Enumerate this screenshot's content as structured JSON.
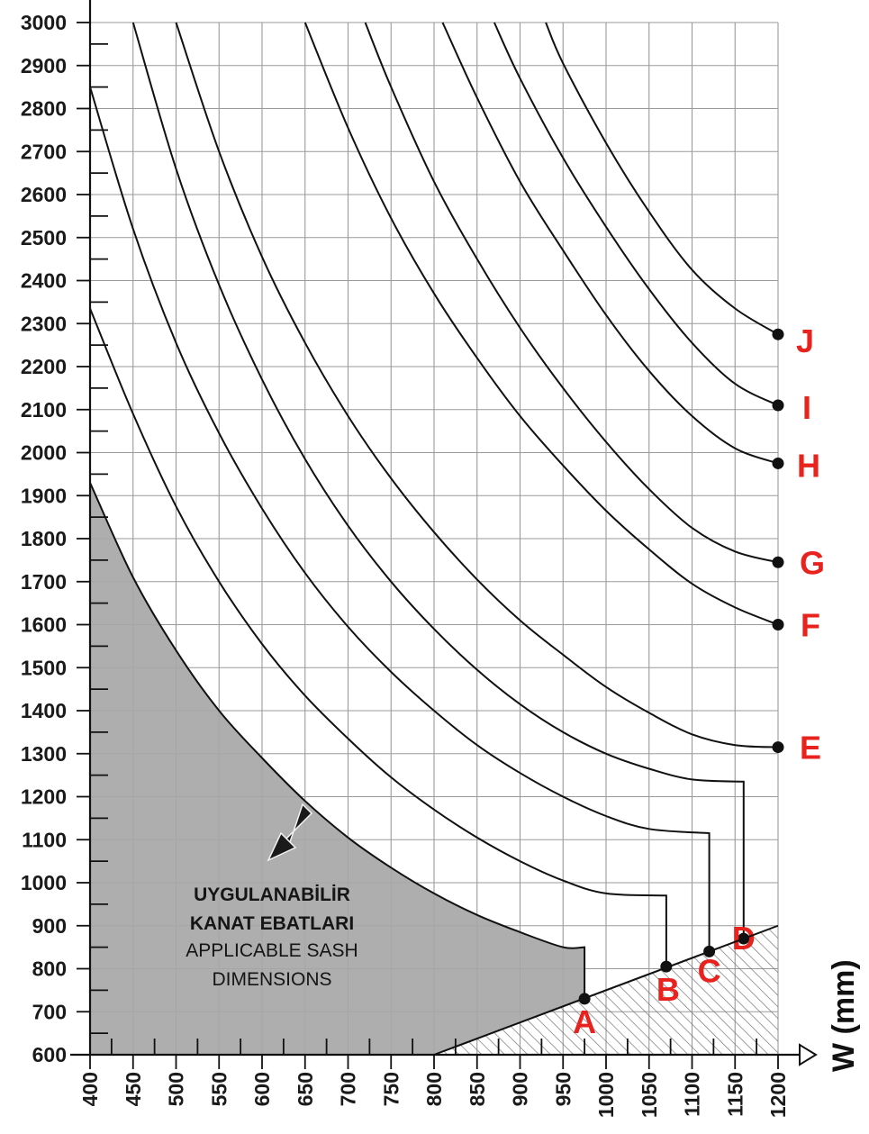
{
  "chart_data": {
    "type": "line",
    "title": "",
    "xlabel": "W (mm)",
    "ylabel": "",
    "xlim": [
      400,
      1200
    ],
    "ylim": [
      600,
      3000
    ],
    "x_ticks": [
      "400",
      "450",
      "500",
      "550",
      "600",
      "650",
      "700",
      "750",
      "800",
      "850",
      "900",
      "950",
      "1000",
      "1050",
      "1100",
      "1150",
      "1200"
    ],
    "y_ticks": [
      "600",
      "700",
      "800",
      "900",
      "1000",
      "1100",
      "1200",
      "1300",
      "1400",
      "1500",
      "1600",
      "1700",
      "1800",
      "1900",
      "2000",
      "2100",
      "2200",
      "2300",
      "2400",
      "2500",
      "2600",
      "2700",
      "2800",
      "2900",
      "3000"
    ],
    "grid": true,
    "note": {
      "line1": "UYGULANABİLİR",
      "line2": "KANAT EBATLARI",
      "line3": "APPLICABLE SASH",
      "line4": "DIMENSIONS"
    },
    "series": [
      {
        "name": "A",
        "points": [
          [
            400,
            1930
          ],
          [
            450,
            1710
          ],
          [
            500,
            1540
          ],
          [
            550,
            1400
          ],
          [
            600,
            1290
          ],
          [
            650,
            1190
          ],
          [
            700,
            1105
          ],
          [
            750,
            1035
          ],
          [
            800,
            975
          ],
          [
            850,
            925
          ],
          [
            900,
            885
          ],
          [
            950,
            850
          ],
          [
            975,
            850
          ],
          [
            975,
            730
          ]
        ],
        "end": [
          975,
          730
        ]
      },
      {
        "name": "B",
        "points": [
          [
            400,
            2335
          ],
          [
            450,
            2090
          ],
          [
            500,
            1875
          ],
          [
            550,
            1700
          ],
          [
            600,
            1555
          ],
          [
            650,
            1435
          ],
          [
            700,
            1335
          ],
          [
            750,
            1245
          ],
          [
            800,
            1170
          ],
          [
            850,
            1105
          ],
          [
            900,
            1050
          ],
          [
            950,
            1005
          ],
          [
            1000,
            975
          ],
          [
            1070,
            970
          ],
          [
            1070,
            805
          ]
        ],
        "end": [
          1070,
          805
        ]
      },
      {
        "name": "C",
        "points": [
          [
            400,
            2850
          ],
          [
            450,
            2520
          ],
          [
            500,
            2255
          ],
          [
            550,
            2045
          ],
          [
            600,
            1870
          ],
          [
            650,
            1720
          ],
          [
            700,
            1595
          ],
          [
            750,
            1490
          ],
          [
            800,
            1400
          ],
          [
            850,
            1320
          ],
          [
            900,
            1255
          ],
          [
            950,
            1200
          ],
          [
            1000,
            1155
          ],
          [
            1050,
            1125
          ],
          [
            1120,
            1115
          ],
          [
            1120,
            840
          ]
        ],
        "end": [
          1120,
          840
        ]
      },
      {
        "name": "D",
        "points": [
          [
            450,
            3000
          ],
          [
            500,
            2660
          ],
          [
            550,
            2390
          ],
          [
            600,
            2170
          ],
          [
            650,
            1985
          ],
          [
            700,
            1830
          ],
          [
            750,
            1700
          ],
          [
            800,
            1590
          ],
          [
            850,
            1495
          ],
          [
            900,
            1415
          ],
          [
            950,
            1350
          ],
          [
            1000,
            1300
          ],
          [
            1050,
            1265
          ],
          [
            1100,
            1240
          ],
          [
            1160,
            1235
          ],
          [
            1160,
            870
          ]
        ],
        "end": [
          1160,
          870
        ]
      },
      {
        "name": "E",
        "points": [
          [
            500,
            3000
          ],
          [
            550,
            2700
          ],
          [
            600,
            2455
          ],
          [
            650,
            2255
          ],
          [
            700,
            2085
          ],
          [
            750,
            1940
          ],
          [
            800,
            1815
          ],
          [
            850,
            1705
          ],
          [
            900,
            1610
          ],
          [
            950,
            1530
          ],
          [
            1000,
            1455
          ],
          [
            1050,
            1395
          ],
          [
            1100,
            1345
          ],
          [
            1150,
            1320
          ],
          [
            1200,
            1315
          ]
        ],
        "end": [
          1200,
          1315
        ]
      },
      {
        "name": "F",
        "points": [
          [
            650,
            3000
          ],
          [
            700,
            2755
          ],
          [
            750,
            2545
          ],
          [
            800,
            2370
          ],
          [
            850,
            2220
          ],
          [
            900,
            2085
          ],
          [
            950,
            1970
          ],
          [
            1000,
            1865
          ],
          [
            1050,
            1775
          ],
          [
            1100,
            1695
          ],
          [
            1150,
            1640
          ],
          [
            1200,
            1600
          ]
        ],
        "end": [
          1200,
          1600
        ]
      },
      {
        "name": "G",
        "points": [
          [
            720,
            3000
          ],
          [
            750,
            2850
          ],
          [
            800,
            2630
          ],
          [
            850,
            2450
          ],
          [
            900,
            2290
          ],
          [
            950,
            2150
          ],
          [
            1000,
            2025
          ],
          [
            1050,
            1915
          ],
          [
            1100,
            1825
          ],
          [
            1150,
            1770
          ],
          [
            1200,
            1745
          ]
        ],
        "end": [
          1200,
          1745
        ]
      },
      {
        "name": "H",
        "points": [
          [
            810,
            3000
          ],
          [
            850,
            2825
          ],
          [
            900,
            2630
          ],
          [
            950,
            2470
          ],
          [
            1000,
            2320
          ],
          [
            1050,
            2190
          ],
          [
            1100,
            2085
          ],
          [
            1150,
            2010
          ],
          [
            1200,
            1975
          ]
        ],
        "end": [
          1200,
          1975
        ]
      },
      {
        "name": "I",
        "points": [
          [
            870,
            3000
          ],
          [
            900,
            2870
          ],
          [
            950,
            2685
          ],
          [
            1000,
            2525
          ],
          [
            1050,
            2380
          ],
          [
            1100,
            2255
          ],
          [
            1150,
            2160
          ],
          [
            1200,
            2110
          ]
        ],
        "end": [
          1200,
          2110
        ]
      },
      {
        "name": "J",
        "points": [
          [
            930,
            3000
          ],
          [
            950,
            2905
          ],
          [
            1000,
            2720
          ],
          [
            1050,
            2560
          ],
          [
            1100,
            2425
          ],
          [
            1150,
            2335
          ],
          [
            1200,
            2275
          ]
        ],
        "end": [
          1200,
          2275
        ]
      }
    ],
    "limit_line": {
      "points": [
        [
          800,
          600
        ],
        [
          1200,
          900
        ]
      ]
    },
    "applicable_region": {
      "points": [
        [
          400,
          1930
        ],
        [
          450,
          1710
        ],
        [
          500,
          1540
        ],
        [
          550,
          1400
        ],
        [
          600,
          1290
        ],
        [
          650,
          1190
        ],
        [
          700,
          1105
        ],
        [
          750,
          1035
        ],
        [
          800,
          975
        ],
        [
          850,
          925
        ],
        [
          900,
          885
        ],
        [
          950,
          850
        ],
        [
          975,
          850
        ],
        [
          975,
          730
        ],
        [
          800,
          600
        ],
        [
          400,
          600
        ]
      ]
    },
    "hatched_region": {
      "points": [
        [
          800,
          600
        ],
        [
          1200,
          900
        ],
        [
          1200,
          600
        ]
      ]
    },
    "colors": {
      "curve": "#111111",
      "label": "#e8231e",
      "applicable": "#a7a7a7",
      "grid": "#9a9a9a",
      "hatch": "#777777"
    }
  }
}
